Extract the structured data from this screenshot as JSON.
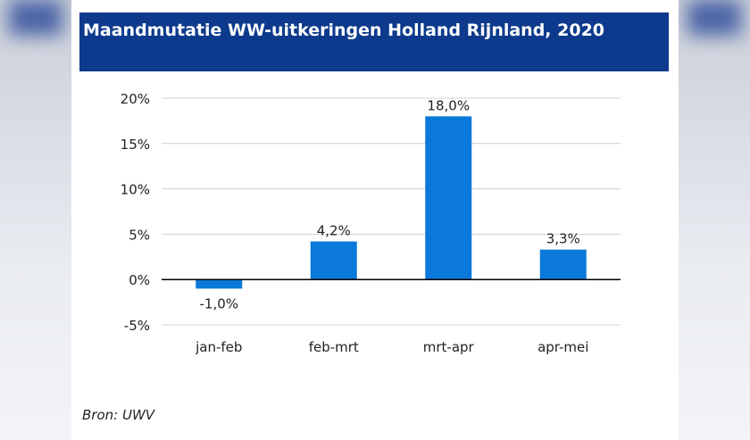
{
  "title": "Maandmutatie WW-uitkeringen Holland Rijnland, 2020",
  "source": "Bron: UWV",
  "colors": {
    "title_bg": "#0d3a8c",
    "bar": "#0a79d9",
    "grid": "#d0d0d0",
    "axis": "#000000"
  },
  "chart_data": {
    "type": "bar",
    "categories": [
      "jan-feb",
      "feb-mrt",
      "mrt-apr",
      "apr-mei"
    ],
    "values": [
      -1.0,
      4.2,
      18.0,
      3.3
    ],
    "data_labels": [
      "-1,0%",
      "4,2%",
      "18,0%",
      "3,3%"
    ],
    "y_ticks": [
      -5,
      0,
      5,
      10,
      15,
      20
    ],
    "y_tick_labels": [
      "-5%",
      "0%",
      "5%",
      "10%",
      "15%",
      "20%"
    ],
    "ylim": [
      -5,
      20
    ],
    "grid": true,
    "legend": "none",
    "title": "Maandmutatie WW-uitkeringen Holland Rijnland, 2020",
    "xlabel": "",
    "ylabel": ""
  }
}
